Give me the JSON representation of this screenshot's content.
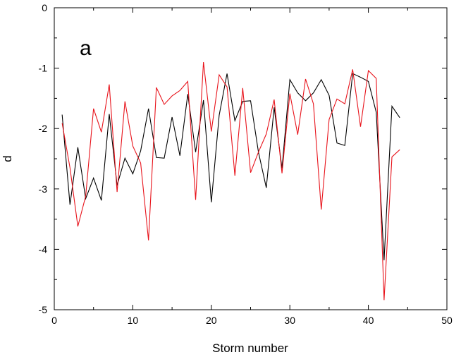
{
  "chart_data": {
    "type": "line",
    "title": "",
    "panel_label": "a",
    "xlabel": "Storm number",
    "ylabel": "d",
    "xlim": [
      0,
      50
    ],
    "ylim": [
      -5,
      0
    ],
    "xticks": [
      0,
      10,
      20,
      30,
      40,
      50
    ],
    "yticks": [
      0,
      -1,
      -2,
      -3,
      -4,
      -5
    ],
    "xtick_labels": [
      "0",
      "10",
      "20",
      "30",
      "40",
      "50"
    ],
    "ytick_labels": [
      "0",
      "-1",
      "-2",
      "-3",
      "-4",
      "-5"
    ],
    "grid": false,
    "legend": "none",
    "x": [
      1,
      2,
      3,
      4,
      5,
      6,
      7,
      8,
      9,
      10,
      11,
      12,
      13,
      14,
      15,
      16,
      17,
      18,
      19,
      20,
      21,
      22,
      23,
      24,
      25,
      26,
      27,
      28,
      29,
      30,
      31,
      32,
      33,
      34,
      35,
      36,
      37,
      38,
      39,
      40,
      41,
      42,
      43,
      44
    ],
    "series": [
      {
        "color": "#000000",
        "values": [
          -1.77,
          -3.26,
          -2.31,
          -3.16,
          -2.82,
          -3.19,
          -1.76,
          -2.94,
          -2.49,
          -2.75,
          -2.37,
          -1.67,
          -2.48,
          -2.49,
          -1.81,
          -2.45,
          -1.43,
          -2.39,
          -1.53,
          -3.22,
          -1.78,
          -1.09,
          -1.87,
          -1.55,
          -1.54,
          -2.39,
          -2.98,
          -1.65,
          -2.66,
          -1.19,
          -1.41,
          -1.54,
          -1.41,
          -1.19,
          -1.45,
          -2.24,
          -2.28,
          -1.09,
          -1.15,
          -1.22,
          -1.73,
          -4.18,
          -1.63,
          -1.82
        ]
      },
      {
        "color": "#e8131b",
        "values": [
          -1.91,
          -2.65,
          -3.62,
          -3.12,
          -1.67,
          -2.06,
          -1.27,
          -3.05,
          -1.55,
          -2.29,
          -2.57,
          -3.85,
          -1.32,
          -1.6,
          -1.46,
          -1.37,
          -1.22,
          -3.18,
          -0.9,
          -2.05,
          -1.11,
          -1.31,
          -2.78,
          -1.33,
          -2.73,
          -2.39,
          -2.09,
          -1.52,
          -2.74,
          -1.42,
          -2.1,
          -1.18,
          -1.59,
          -3.34,
          -1.85,
          -1.51,
          -1.59,
          -1.02,
          -1.97,
          -1.04,
          -1.17,
          -4.84,
          -2.47,
          -2.35
        ]
      }
    ]
  }
}
